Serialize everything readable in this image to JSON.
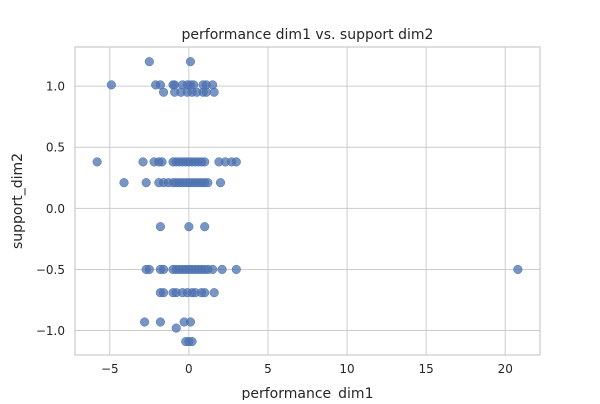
{
  "chart_data": {
    "type": "scatter",
    "title": "performance dim1 vs. support dim2",
    "xlabel": "performance_dim1",
    "ylabel": "support_dim2",
    "xlim": [
      -7.2,
      22.2
    ],
    "ylim": [
      -1.2,
      1.32
    ],
    "xticks": [
      -5,
      0,
      5,
      10,
      15,
      20
    ],
    "yticks": [
      -1.0,
      -0.5,
      0.0,
      0.5,
      1.0
    ],
    "xtick_labels": [
      "−5",
      "0",
      "5",
      "10",
      "15",
      "20"
    ],
    "ytick_labels": [
      "−1.0",
      "−0.5",
      "0.0",
      "0.5",
      "1.0"
    ],
    "grid": true,
    "marker_color": "#4c72b0",
    "marker_alpha": 0.75,
    "points": [
      {
        "x": -2.5,
        "y": 1.2
      },
      {
        "x": 0.1,
        "y": 1.2
      },
      {
        "x": -4.9,
        "y": 1.01
      },
      {
        "x": -2.1,
        "y": 1.01
      },
      {
        "x": -1.8,
        "y": 1.01
      },
      {
        "x": -1.0,
        "y": 1.01
      },
      {
        "x": -0.9,
        "y": 1.01
      },
      {
        "x": -0.4,
        "y": 1.01
      },
      {
        "x": -0.1,
        "y": 1.01
      },
      {
        "x": 0.1,
        "y": 1.01
      },
      {
        "x": 0.3,
        "y": 1.01
      },
      {
        "x": 0.9,
        "y": 1.01
      },
      {
        "x": 1.1,
        "y": 1.01
      },
      {
        "x": 1.5,
        "y": 1.01
      },
      {
        "x": -1.6,
        "y": 0.95
      },
      {
        "x": -0.9,
        "y": 0.95
      },
      {
        "x": -0.5,
        "y": 0.95
      },
      {
        "x": -0.1,
        "y": 0.95
      },
      {
        "x": 0.2,
        "y": 0.95
      },
      {
        "x": 0.5,
        "y": 0.95
      },
      {
        "x": 0.9,
        "y": 0.95
      },
      {
        "x": 1.1,
        "y": 0.95
      },
      {
        "x": 1.6,
        "y": 0.95
      },
      {
        "x": -5.8,
        "y": 0.38
      },
      {
        "x": -2.9,
        "y": 0.38
      },
      {
        "x": -2.2,
        "y": 0.38
      },
      {
        "x": -1.9,
        "y": 0.38
      },
      {
        "x": -1.7,
        "y": 0.38
      },
      {
        "x": -1.0,
        "y": 0.38
      },
      {
        "x": -0.8,
        "y": 0.38
      },
      {
        "x": -0.6,
        "y": 0.38
      },
      {
        "x": -0.4,
        "y": 0.38
      },
      {
        "x": -0.2,
        "y": 0.38
      },
      {
        "x": 0.0,
        "y": 0.38
      },
      {
        "x": 0.2,
        "y": 0.38
      },
      {
        "x": 0.4,
        "y": 0.38
      },
      {
        "x": 0.6,
        "y": 0.38
      },
      {
        "x": 0.8,
        "y": 0.38
      },
      {
        "x": 1.0,
        "y": 0.38
      },
      {
        "x": 1.9,
        "y": 0.38
      },
      {
        "x": 2.3,
        "y": 0.38
      },
      {
        "x": 2.7,
        "y": 0.38
      },
      {
        "x": 3.0,
        "y": 0.38
      },
      {
        "x": -4.1,
        "y": 0.21
      },
      {
        "x": -2.7,
        "y": 0.21
      },
      {
        "x": -1.9,
        "y": 0.21
      },
      {
        "x": -1.6,
        "y": 0.21
      },
      {
        "x": -1.3,
        "y": 0.21
      },
      {
        "x": -1.0,
        "y": 0.21
      },
      {
        "x": -0.8,
        "y": 0.21
      },
      {
        "x": -0.6,
        "y": 0.21
      },
      {
        "x": -0.4,
        "y": 0.21
      },
      {
        "x": -0.2,
        "y": 0.21
      },
      {
        "x": 0.0,
        "y": 0.21
      },
      {
        "x": 0.2,
        "y": 0.21
      },
      {
        "x": 0.4,
        "y": 0.21
      },
      {
        "x": 0.6,
        "y": 0.21
      },
      {
        "x": 0.8,
        "y": 0.21
      },
      {
        "x": 1.0,
        "y": 0.21
      },
      {
        "x": 1.2,
        "y": 0.21
      },
      {
        "x": 2.0,
        "y": 0.21
      },
      {
        "x": -1.8,
        "y": -0.15
      },
      {
        "x": 0.0,
        "y": -0.15
      },
      {
        "x": 1.0,
        "y": -0.15
      },
      {
        "x": -2.7,
        "y": -0.5
      },
      {
        "x": -2.5,
        "y": -0.5
      },
      {
        "x": -1.8,
        "y": -0.5
      },
      {
        "x": -1.6,
        "y": -0.5
      },
      {
        "x": -1.0,
        "y": -0.5
      },
      {
        "x": -0.8,
        "y": -0.5
      },
      {
        "x": -0.6,
        "y": -0.5
      },
      {
        "x": -0.4,
        "y": -0.5
      },
      {
        "x": -0.2,
        "y": -0.5
      },
      {
        "x": 0.0,
        "y": -0.5
      },
      {
        "x": 0.2,
        "y": -0.5
      },
      {
        "x": 0.4,
        "y": -0.5
      },
      {
        "x": 0.6,
        "y": -0.5
      },
      {
        "x": 0.8,
        "y": -0.5
      },
      {
        "x": 1.0,
        "y": -0.5
      },
      {
        "x": 1.2,
        "y": -0.5
      },
      {
        "x": 1.5,
        "y": -0.5
      },
      {
        "x": 2.1,
        "y": -0.5
      },
      {
        "x": 3.0,
        "y": -0.5
      },
      {
        "x": 20.8,
        "y": -0.5
      },
      {
        "x": -1.8,
        "y": -0.69
      },
      {
        "x": -1.6,
        "y": -0.69
      },
      {
        "x": -1.0,
        "y": -0.69
      },
      {
        "x": -0.8,
        "y": -0.69
      },
      {
        "x": -0.4,
        "y": -0.69
      },
      {
        "x": -0.1,
        "y": -0.69
      },
      {
        "x": 0.2,
        "y": -0.69
      },
      {
        "x": 0.4,
        "y": -0.69
      },
      {
        "x": 0.8,
        "y": -0.69
      },
      {
        "x": 1.0,
        "y": -0.69
      },
      {
        "x": 1.6,
        "y": -0.69
      },
      {
        "x": -2.8,
        "y": -0.93
      },
      {
        "x": -1.8,
        "y": -0.93
      },
      {
        "x": -0.3,
        "y": -0.93
      },
      {
        "x": 0.1,
        "y": -0.93
      },
      {
        "x": -0.8,
        "y": -0.98
      },
      {
        "x": -0.2,
        "y": -1.09
      },
      {
        "x": 0.0,
        "y": -1.09
      },
      {
        "x": 0.2,
        "y": -1.09
      }
    ]
  }
}
